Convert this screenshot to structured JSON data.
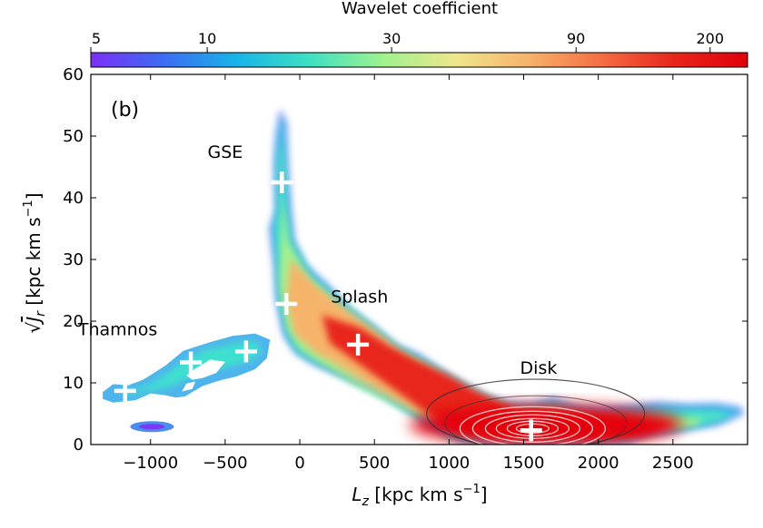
{
  "chart_data": {
    "type": "heatmap",
    "panel_label": "(b)",
    "xlabel": "L_z [kpc km s^-1]",
    "ylabel": "sqrt(J_r) [kpc km s^-1]",
    "xlim": [
      -1400,
      3000
    ],
    "ylim": [
      0,
      60
    ],
    "x_ticks": [
      -1000,
      -500,
      0,
      500,
      1000,
      1500,
      2000,
      2500
    ],
    "x_tick_labels": [
      "−1000",
      "−500",
      "0",
      "500",
      "1000",
      "1500",
      "2000",
      "2500"
    ],
    "y_ticks": [
      0,
      10,
      20,
      30,
      40,
      50,
      60
    ],
    "y_tick_labels": [
      "0",
      "10",
      "20",
      "30",
      "40",
      "50",
      "60"
    ],
    "colorbar": {
      "label": "Wavelet coefficient",
      "scale": "log",
      "range": [
        5,
        250
      ],
      "ticks": [
        5,
        10,
        30,
        90,
        200
      ],
      "tick_labels": [
        "5",
        "10",
        "30",
        "90",
        "200"
      ],
      "colormap": [
        "#7b2ff7",
        "#3c6cf2",
        "#18b4e8",
        "#3ee0c2",
        "#9ef28e",
        "#f0e68c",
        "#f7b26a",
        "#f46d43",
        "#e8251c",
        "#e0000b"
      ]
    },
    "annotations": [
      {
        "text": "GSE",
        "x": -500,
        "y": 46.5
      },
      {
        "text": "Splash",
        "x": 400,
        "y": 23
      },
      {
        "text": "Thamnos",
        "x": -1220,
        "y": 17.7
      },
      {
        "text": "Disk",
        "x": 1600,
        "y": 11.5
      }
    ],
    "peaks": [
      {
        "x": -120,
        "y": 42.5
      },
      {
        "x": -90,
        "y": 22.8
      },
      {
        "x": 390,
        "y": 16.2
      },
      {
        "x": -730,
        "y": 13.3
      },
      {
        "x": -360,
        "y": 15.1
      },
      {
        "x": -1170,
        "y": 8.7
      },
      {
        "x": 1550,
        "y": 2.3
      }
    ]
  }
}
